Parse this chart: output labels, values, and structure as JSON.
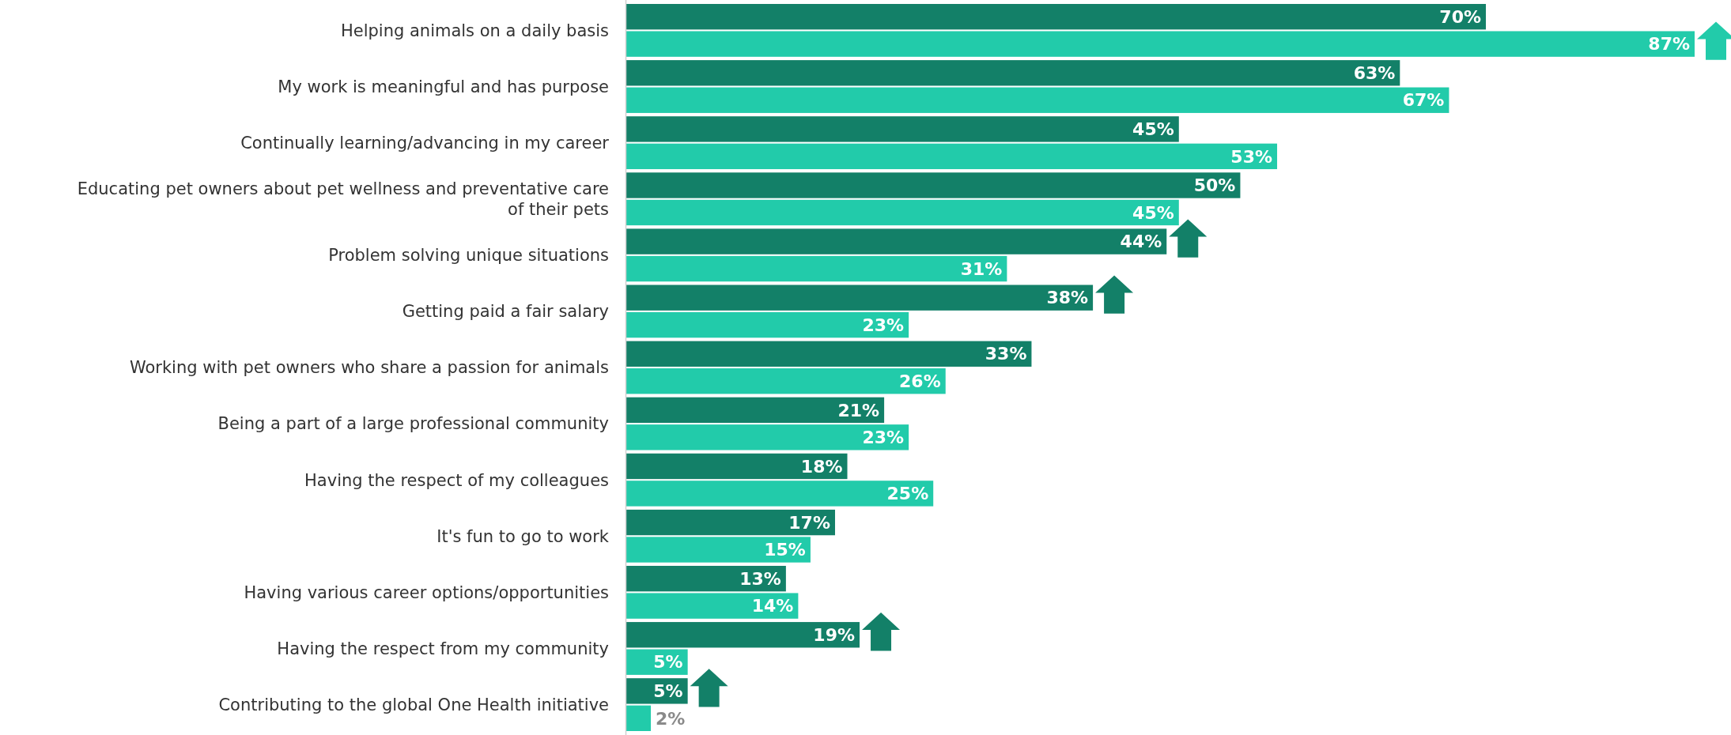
{
  "chart_data": {
    "type": "bar",
    "orientation": "horizontal",
    "relative": false,
    "categories": [
      "Helping animals on a daily basis",
      "My work is meaningful and has purpose",
      "Continually learning/advancing in my career",
      "Educating pet owners about pet wellness and preventative care of their pets",
      "Problem solving unique situations",
      "Getting paid a fair salary",
      "Working with pet owners who share a passion for animals",
      "Being a part of a large professional community",
      "Having the respect of my colleagues",
      "It's fun to go to work",
      "Having various career options/opportunities",
      "Having the respect from my community",
      "Contributing to the global One Health initiative"
    ],
    "series": [
      {
        "color": "#138068",
        "values": [
          70,
          63,
          45,
          50,
          44,
          38,
          33,
          21,
          18,
          17,
          13,
          19,
          5
        ],
        "value_labels": [
          "70%",
          "63%",
          "45%",
          "50%",
          "44%",
          "38%",
          "33%",
          "21%",
          "18%",
          "17%",
          "13%",
          "19%",
          "5%"
        ]
      },
      {
        "color": "#22cbaa",
        "values": [
          87,
          67,
          53,
          45,
          31,
          23,
          26,
          23,
          25,
          15,
          14,
          5,
          2
        ],
        "value_labels": [
          "87%",
          "67%",
          "53%",
          "45%",
          "31%",
          "23%",
          "26%",
          "23%",
          "25%",
          "15%",
          "14%",
          "5%",
          "2%"
        ]
      }
    ]
  }
}
